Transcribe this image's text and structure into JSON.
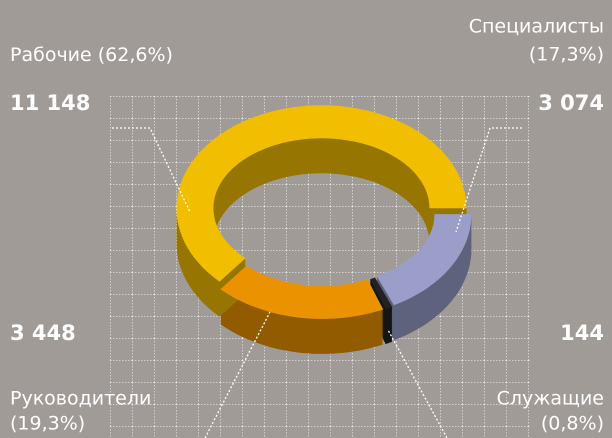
{
  "chart_data": {
    "type": "pie",
    "categories": [
      "Специалисты",
      "Служащие",
      "Руководители",
      "Рабочие"
    ],
    "values": [
      17.3,
      0.8,
      19.3,
      62.6
    ],
    "value_labels": [
      "(17,3%)",
      "(0,8%)",
      "(19,3%)",
      "(62,6%)"
    ],
    "counts": [
      3074,
      144,
      3448,
      11148
    ],
    "count_labels": [
      "3 074",
      "144",
      "3 448",
      "11 148"
    ],
    "colors": [
      "#9a9ec8",
      "#222222",
      "#eb9200",
      "#f2be00"
    ]
  }
}
